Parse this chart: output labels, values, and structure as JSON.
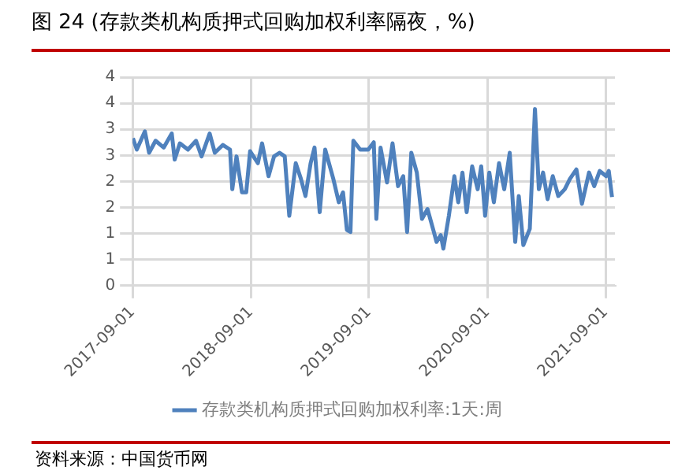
{
  "chart_data": {
    "type": "line",
    "title": "图 24 (存款类机构质押式回购加权利率隔夜，%)",
    "annotations": [
      "资料来源：中国货币网"
    ],
    "x": [
      "2017-09-02",
      "2017-09-14",
      "2017-10-09",
      "2017-10-22",
      "2017-11-11",
      "2017-12-06",
      "2017-12-31",
      "2018-01-09",
      "2018-01-25",
      "2018-02-19",
      "2018-03-16",
      "2018-04-02",
      "2018-04-27",
      "2018-05-13",
      "2018-06-07",
      "2018-06-29",
      "2018-07-06",
      "2018-07-19",
      "2018-08-05",
      "2018-08-18",
      "2018-08-30",
      "2018-09-23",
      "2018-10-06",
      "2018-10-26",
      "2018-11-12",
      "2018-11-29",
      "2018-12-15",
      "2018-12-29",
      "2019-01-18",
      "2019-02-03",
      "2019-02-17",
      "2019-03-05",
      "2019-03-17",
      "2019-04-02",
      "2019-04-19",
      "2019-05-14",
      "2019-05-31",
      "2019-06-13",
      "2019-06-25",
      "2019-07-06",
      "2019-07-15",
      "2019-08-05",
      "2019-08-30",
      "2019-09-16",
      "2019-09-24",
      "2019-10-07",
      "2019-10-27",
      "2019-11-13",
      "2019-11-30",
      "2019-12-16",
      "2019-12-28",
      "2020-01-10",
      "2020-01-27",
      "2020-02-12",
      "2020-02-29",
      "2020-03-17",
      "2020-03-28",
      "2020-04-10",
      "2020-04-18",
      "2020-05-05",
      "2020-05-22",
      "2020-06-03",
      "2020-06-16",
      "2020-06-29",
      "2020-07-16",
      "2020-08-02",
      "2020-08-13",
      "2020-08-25",
      "2020-09-07",
      "2020-09-21",
      "2020-10-07",
      "2020-10-23",
      "2020-11-09",
      "2020-11-26",
      "2020-12-07",
      "2020-12-21",
      "2021-01-10",
      "2021-01-26",
      "2021-02-07",
      "2021-02-20",
      "2021-03-06",
      "2021-03-22",
      "2021-04-08",
      "2021-04-28",
      "2021-05-14",
      "2021-06-03",
      "2021-06-20",
      "2021-07-12",
      "2021-07-28",
      "2021-08-14",
      "2021-09-03",
      "2021-09-11",
      "2021-09-21"
    ],
    "series": [
      {
        "name": "存款类机构质押式回购加权利率:1天:周",
        "color": "#4f81bd",
        "values": [
          2.83,
          2.61,
          2.96,
          2.55,
          2.78,
          2.65,
          2.92,
          2.42,
          2.73,
          2.61,
          2.78,
          2.48,
          2.92,
          2.55,
          2.7,
          2.61,
          1.85,
          2.48,
          1.79,
          1.79,
          2.58,
          2.35,
          2.73,
          2.1,
          2.48,
          2.55,
          2.48,
          1.34,
          2.35,
          2.05,
          1.72,
          2.35,
          2.65,
          1.41,
          2.61,
          2.05,
          1.6,
          1.79,
          1.07,
          1.03,
          2.78,
          2.61,
          2.61,
          2.75,
          1.28,
          2.65,
          1.98,
          2.73,
          1.91,
          2.1,
          1.03,
          2.55,
          2.17,
          1.28,
          1.47,
          1.09,
          0.84,
          0.97,
          0.71,
          1.34,
          2.1,
          1.6,
          2.17,
          1.41,
          2.29,
          1.85,
          2.29,
          1.34,
          2.17,
          1.6,
          2.35,
          1.85,
          2.55,
          0.84,
          1.72,
          0.78,
          1.09,
          3.39,
          1.85,
          2.17,
          1.66,
          2.1,
          1.72,
          1.85,
          2.05,
          2.23,
          1.57,
          2.17,
          1.91,
          2.2,
          2.1,
          2.2,
          1.7
        ]
      }
    ],
    "xlim": [
      "2017-09-01",
      "2021-09-30"
    ],
    "xticks": [
      "2017-09-01",
      "2018-09-01",
      "2019-09-01",
      "2020-09-01",
      "2021-09-01"
    ],
    "ylim": [
      0,
      4
    ],
    "yticks": [
      0,
      {
        "value": 0.5,
        "label": "1"
      },
      1,
      {
        "value": 1.5,
        "label": "2"
      },
      2,
      {
        "value": 2.5,
        "label": "3"
      },
      3,
      {
        "value": 3.5,
        "label": "4"
      },
      4
    ],
    "grid": true,
    "legend": "bottom",
    "marker": "none",
    "line_style": "solid"
  }
}
